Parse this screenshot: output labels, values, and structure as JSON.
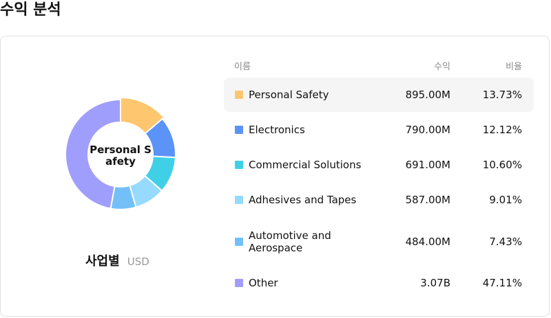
{
  "page": {
    "title": "수익 분석"
  },
  "chart_data": {
    "type": "pie",
    "style": "donut",
    "center_label": "Personal S\nafety",
    "caption": "사업별",
    "unit": "USD",
    "columns": [
      "이름",
      "수익",
      "비율"
    ],
    "highlighted_index": 0,
    "segments": [
      {
        "name": "Personal Safety",
        "revenue": "895.00M",
        "ratio": "13.73%",
        "value": 13.73,
        "color": "#FFC670"
      },
      {
        "name": "Electronics",
        "revenue": "790.00M",
        "ratio": "12.12%",
        "value": 12.12,
        "color": "#5B93F6"
      },
      {
        "name": "Commercial Solutions",
        "revenue": "691.00M",
        "ratio": "10.60%",
        "value": 10.6,
        "color": "#3FD0E8"
      },
      {
        "name": "Adhesives and Tapes",
        "revenue": "587.00M",
        "ratio": "9.01%",
        "value": 9.01,
        "color": "#96DBFF"
      },
      {
        "name": "Automotive and Aerospace",
        "revenue": "484.00M",
        "ratio": "7.43%",
        "value": 7.43,
        "color": "#73C0F8"
      },
      {
        "name": "Other",
        "revenue": "3.07B",
        "ratio": "47.11%",
        "value": 47.11,
        "color": "#A09EFC"
      }
    ]
  }
}
